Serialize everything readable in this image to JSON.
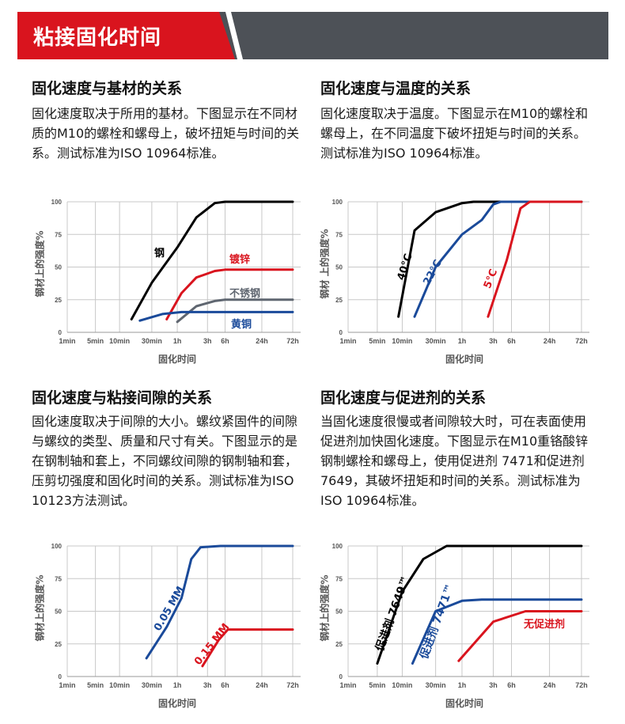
{
  "header": {
    "title": "粘接固化时间",
    "colors": {
      "red": "#d9141e",
      "dark": "#4d5157"
    }
  },
  "sections": [
    {
      "title": "固化速度与基材的关系",
      "text": "固化速度取决于所用的基材。下图显示在不同材质的M10的螺栓和螺母上，破坏扭矩与时间的关系。测试标准为ISO 10964标准。"
    },
    {
      "title": "固化速度与温度的关系",
      "text": "固化速度取决于温度。下图显示在M10的螺栓和螺母上，在不同温度下破坏扭矩与时间的关系。测试标准为ISO 10964标准。"
    },
    {
      "title": "固化速度与粘接间隙的关系",
      "text": "固化速度取决于间隙的大小。螺纹紧固件的间隙与螺纹的类型、质量和尺寸有关。下图显示的是在钢制轴和套上，不同螺纹间隙的钢制轴和套，压剪切强度和固化时间的关系。测试标准为ISO 10123方法测试。"
    },
    {
      "title": "固化速度与促进剂的关系",
      "text": "当固化速度很慢或者间隙较大时，可在表面使用促进剂加快固化速度。下图显示在M10重铬酸锌钢制螺栓和螺母上，使用促进剂 7471和促进剂 7649，其破坏扭矩和时间的关系。测试标准为ISO 10964标准。"
    }
  ],
  "chart_data": [
    {
      "type": "line",
      "xlabel": "固化时间",
      "ylabel": "钢材上的强度%",
      "x_unit": "minutes",
      "x_ticks": [
        1,
        5,
        10,
        30,
        60,
        180,
        360,
        1440,
        4320
      ],
      "x_tick_labels": [
        "1min",
        "5min",
        "10min",
        "30min",
        "1h",
        "3h",
        "6h",
        "24h",
        "72h"
      ],
      "y_ticks": [
        0,
        25,
        50,
        75,
        100
      ],
      "ylim": [
        0,
        100
      ],
      "grid": true,
      "series": [
        {
          "name": "钢",
          "color": "#000000",
          "points": [
            [
              15,
              10
            ],
            [
              30,
              38
            ],
            [
              60,
              65
            ],
            [
              120,
              88
            ],
            [
              240,
              99
            ],
            [
              360,
              100
            ],
            [
              4320,
              100
            ]
          ]
        },
        {
          "name": "镀锌",
          "color": "#d9141e",
          "points": [
            [
              45,
              10
            ],
            [
              70,
              30
            ],
            [
              120,
              42
            ],
            [
              240,
              47
            ],
            [
              360,
              48
            ],
            [
              4320,
              48
            ]
          ]
        },
        {
          "name": "不锈钢",
          "color": "#5f6670",
          "points": [
            [
              60,
              8
            ],
            [
              120,
              20
            ],
            [
              240,
              24
            ],
            [
              360,
              25
            ],
            [
              4320,
              25
            ]
          ]
        },
        {
          "name": "黄铜",
          "color": "#1a4a9a",
          "points": [
            [
              20,
              9
            ],
            [
              40,
              14
            ],
            [
              70,
              15.5
            ],
            [
              4320,
              15.5
            ]
          ]
        }
      ]
    },
    {
      "type": "line",
      "xlabel": "固化时间",
      "ylabel": "钢材 上的强度%",
      "x_unit": "minutes",
      "x_ticks": [
        1,
        5,
        10,
        30,
        60,
        180,
        360,
        1440,
        4320
      ],
      "x_tick_labels": [
        "1min",
        "5min",
        "10min",
        "30min",
        "1h",
        "3h",
        "6h",
        "24h",
        "72h"
      ],
      "y_ticks": [
        0,
        25,
        50,
        75,
        100
      ],
      "ylim": [
        0,
        100
      ],
      "grid": true,
      "series": [
        {
          "name": "40°C",
          "color": "#000000",
          "points": [
            [
              9,
              12
            ],
            [
              15,
              78
            ],
            [
              30,
              92
            ],
            [
              60,
              99
            ],
            [
              90,
              100
            ],
            [
              4320,
              100
            ]
          ]
        },
        {
          "name": "22°C",
          "color": "#1a4a9a",
          "points": [
            [
              15,
              12
            ],
            [
              30,
              50
            ],
            [
              60,
              75
            ],
            [
              120,
              86
            ],
            [
              180,
              98
            ],
            [
              240,
              100
            ],
            [
              4320,
              100
            ]
          ]
        },
        {
          "name": "5°C",
          "color": "#d9141e",
          "points": [
            [
              150,
              12
            ],
            [
              300,
              55
            ],
            [
              500,
              95
            ],
            [
              700,
              100
            ],
            [
              4320,
              100
            ]
          ]
        }
      ]
    },
    {
      "type": "line",
      "xlabel": "固化时间",
      "ylabel": "钢材上的强度%",
      "x_unit": "minutes",
      "x_ticks": [
        1,
        5,
        10,
        30,
        60,
        180,
        360,
        1440,
        4320
      ],
      "x_tick_labels": [
        "1min",
        "5min",
        "10min",
        "30min",
        "1h",
        "3h",
        "6h",
        "24h",
        "72h"
      ],
      "y_ticks": [
        0,
        25,
        50,
        75,
        100
      ],
      "ylim": [
        0,
        100
      ],
      "grid": true,
      "series": [
        {
          "name": "0.05 MM",
          "color": "#1a4a9a",
          "points": [
            [
              25,
              14
            ],
            [
              45,
              38
            ],
            [
              70,
              60
            ],
            [
              100,
              90
            ],
            [
              140,
              99
            ],
            [
              300,
              100
            ],
            [
              4320,
              100
            ]
          ]
        },
        {
          "name": "0.15 MM",
          "color": "#d9141e",
          "points": [
            [
              150,
              8
            ],
            [
              280,
              28
            ],
            [
              400,
              36
            ],
            [
              4320,
              36
            ]
          ]
        }
      ]
    },
    {
      "type": "line",
      "xlabel": "固化时间",
      "ylabel": "钢材上的强度%",
      "x_unit": "minutes",
      "x_ticks": [
        1,
        5,
        10,
        30,
        60,
        180,
        360,
        1440,
        4320
      ],
      "x_tick_labels": [
        "1min",
        "5min",
        "10min",
        "30min",
        "1h",
        "3h",
        "6h",
        "24h",
        "72h"
      ],
      "y_ticks": [
        0,
        25,
        50,
        75,
        100
      ],
      "ylim": [
        0,
        100
      ],
      "grid": true,
      "series": [
        {
          "name": "促进剂 7649™",
          "color": "#000000",
          "points": [
            [
              5,
              10
            ],
            [
              10,
              65
            ],
            [
              20,
              90
            ],
            [
              40,
              100
            ],
            [
              4320,
              100
            ]
          ]
        },
        {
          "name": "促进剂 7471™",
          "color": "#1a4a9a",
          "points": [
            [
              14,
              10
            ],
            [
              30,
              50
            ],
            [
              60,
              58
            ],
            [
              120,
              59
            ],
            [
              4320,
              59
            ]
          ]
        },
        {
          "name": "无促进剂",
          "color": "#d9141e",
          "points": [
            [
              55,
              12
            ],
            [
              180,
              42
            ],
            [
              600,
              50
            ],
            [
              4320,
              50
            ]
          ]
        }
      ]
    }
  ]
}
